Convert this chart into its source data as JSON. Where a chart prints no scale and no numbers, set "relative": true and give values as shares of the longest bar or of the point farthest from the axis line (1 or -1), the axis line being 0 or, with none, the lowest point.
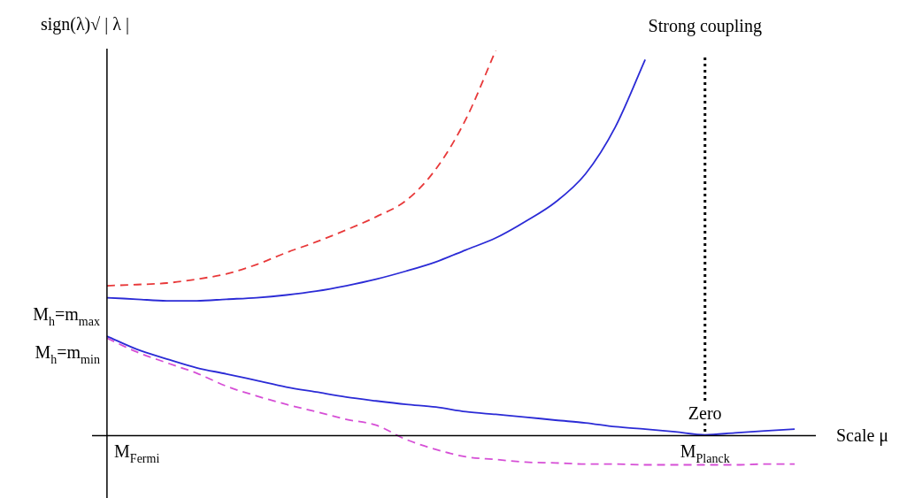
{
  "chart_data": {
    "type": "line",
    "relative": true,
    "ylabel": "sign(λ)√ | λ |",
    "xlabel": "Scale μ",
    "categories": [
      null,
      "M$_{Fermi}$",
      null,
      null,
      null,
      null,
      null,
      null,
      null,
      null,
      null,
      null,
      null,
      null,
      null,
      null,
      null,
      null,
      null,
      null,
      "M$_{Planck}$",
      null,
      null,
      null
    ],
    "series": [
      {
        "color": "#e8393a",
        "line_style": "dashed",
        "values": [
          0.389,
          0.392,
          0.396,
          0.406,
          0.42,
          0.444,
          0.475,
          0.503,
          0.534,
          0.568,
          0.61,
          0.692,
          0.821,
          1,
          null,
          null,
          null,
          null,
          null,
          null,
          null,
          null,
          null,
          null
        ]
      },
      {
        "color": "#2b2bd6",
        "line_style": "solid",
        "values": [
          0.358,
          0.354,
          0.35,
          0.35,
          0.354,
          0.358,
          0.365,
          0.375,
          0.389,
          0.406,
          0.427,
          0.451,
          0.482,
          0.513,
          0.556,
          0.606,
          0.679,
          0.801,
          0.976,
          null,
          null,
          null,
          null,
          null
        ]
      },
      {
        "color": "#2b2bd6",
        "line_style": "solid",
        "values": [
          0.258,
          0.224,
          0.199,
          0.176,
          0.16,
          0.143,
          0.126,
          0.113,
          0.1,
          0.09,
          0.081,
          0.074,
          0.062,
          0.055,
          0.048,
          0.04,
          0.033,
          0.023,
          0.017,
          0.01,
          0.002,
          0.007,
          0.012,
          0.017
        ]
      },
      {
        "color": "#d64fd6",
        "line_style": "dashed",
        "values": [
          0.253,
          0.217,
          0.189,
          0.162,
          0.128,
          0.103,
          0.081,
          0.062,
          0.042,
          0.027,
          -0.01,
          -0.036,
          -0.055,
          -0.062,
          -0.069,
          -0.071,
          -0.074,
          -0.074,
          -0.076,
          -0.076,
          -0.076,
          -0.076,
          -0.074,
          -0.074
        ]
      }
    ],
    "ref_lines": [
      {
        "axis": "x",
        "value": "M$_{Planck}$",
        "label": "Strong coupling",
        "line_style": "dotted",
        "color": "#000000"
      }
    ],
    "annotations": [
      "M$_{h}$=m$_{max}$",
      "M$_{h}$=m$_{min}$",
      {
        "text": "Zero",
        "x": "M$_{Planck}$",
        "y": 0
      }
    ],
    "legend": false,
    "marker": "none"
  }
}
